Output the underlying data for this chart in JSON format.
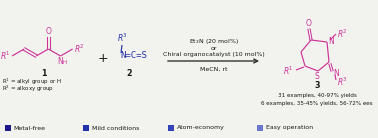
{
  "bg_color": "#f2f2ee",
  "magenta": "#cc3399",
  "dark_blue": "#1a1a8c",
  "mid_blue": "#2233aa",
  "blue3": "#3344bb",
  "blue4": "#6677cc",
  "text_color": "#1a1a1a",
  "legend_items": [
    {
      "label": "Metal-free",
      "color": "#1a1a8c"
    },
    {
      "label": "Mild conditions",
      "color": "#2233aa"
    },
    {
      "label": "Atom-economy",
      "color": "#3344bb"
    },
    {
      "label": "Easy operation",
      "color": "#6677cc"
    }
  ],
  "reaction_text_top1": "Et$_3$N (20 mol%)",
  "reaction_text_top2": "or",
  "reaction_text_top3": "Chiral organocatalyst (10 mol%)",
  "reaction_text_bot": "MeCN, rt",
  "yield_text1": "31 examples, 40-97% yields",
  "yield_text2": "6 examples, 35-45% yields, 56-72% ees",
  "compound1": "1",
  "compound2": "2",
  "compound3": "3",
  "r1_label": "R$^1$ = alkyl group or H",
  "r2_label": "R$^2$ = alkoxy group"
}
